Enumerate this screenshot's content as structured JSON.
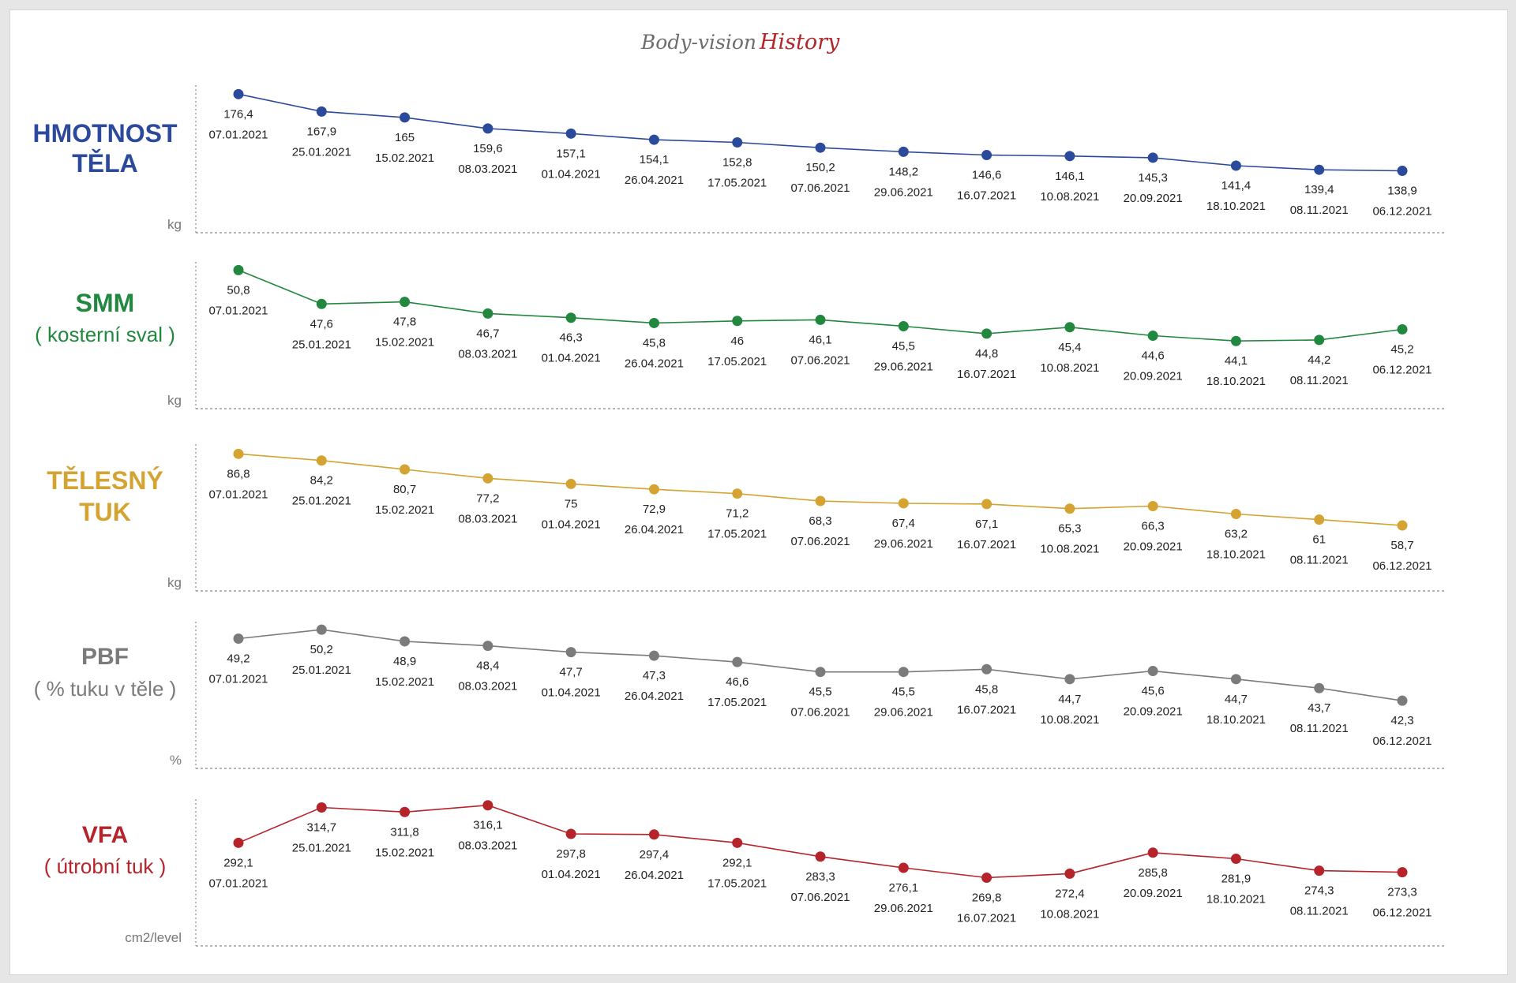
{
  "title": {
    "part1": "Body-vision",
    "part2": "History",
    "accent_color": "#b0262a"
  },
  "dates": [
    "07.01.2021",
    "25.01.2021",
    "15.02.2021",
    "08.03.2021",
    "01.04.2021",
    "26.04.2021",
    "17.05.2021",
    "07.06.2021",
    "29.06.2021",
    "16.07.2021",
    "10.08.2021",
    "20.09.2021",
    "18.10.2021",
    "08.11.2021",
    "06.12.2021"
  ],
  "chart_data": [
    {
      "type": "line",
      "name": "HMOTNOST TĚLA",
      "title_lines": [
        "HMOTNOST",
        "TĚLA"
      ],
      "subtitle": "",
      "unit": "kg",
      "color": "#2c4a9c",
      "x": [
        "07.01.2021",
        "25.01.2021",
        "15.02.2021",
        "08.03.2021",
        "01.04.2021",
        "26.04.2021",
        "17.05.2021",
        "07.06.2021",
        "29.06.2021",
        "16.07.2021",
        "10.08.2021",
        "20.09.2021",
        "18.10.2021",
        "08.11.2021",
        "06.12.2021"
      ],
      "values": [
        176.4,
        167.9,
        165,
        159.6,
        157.1,
        154.1,
        152.8,
        150.2,
        148.2,
        146.6,
        146.1,
        145.3,
        141.4,
        139.4,
        138.9
      ],
      "labels": [
        "176,4",
        "167,9",
        "165",
        "159,6",
        "157,1",
        "154,1",
        "152,8",
        "150,2",
        "148,2",
        "146,6",
        "146,1",
        "145,3",
        "141,4",
        "139,4",
        "138,9"
      ],
      "ylim": [
        136,
        180
      ],
      "grid": false
    },
    {
      "type": "line",
      "name": "SMM",
      "title_lines": [
        "SMM"
      ],
      "subtitle": "( kosterní sval )",
      "unit": "kg",
      "color": "#22873f",
      "x": [
        "07.01.2021",
        "25.01.2021",
        "15.02.2021",
        "08.03.2021",
        "01.04.2021",
        "26.04.2021",
        "17.05.2021",
        "07.06.2021",
        "29.06.2021",
        "16.07.2021",
        "10.08.2021",
        "20.09.2021",
        "18.10.2021",
        "08.11.2021",
        "06.12.2021"
      ],
      "values": [
        50.8,
        47.6,
        47.8,
        46.7,
        46.3,
        45.8,
        46,
        46.1,
        45.5,
        44.8,
        45.4,
        44.6,
        44.1,
        44.2,
        45.2
      ],
      "labels": [
        "50,8",
        "47,6",
        "47,8",
        "46,7",
        "46,3",
        "45,8",
        "46",
        "46,1",
        "45,5",
        "44,8",
        "45,4",
        "44,6",
        "44,1",
        "44,2",
        "45,2"
      ],
      "ylim": [
        43,
        51.5
      ],
      "grid": false
    },
    {
      "type": "line",
      "name": "TĚLESNÝ TUK",
      "title_lines": [
        "TĚLESNÝ",
        "TUK"
      ],
      "subtitle": "",
      "unit": "kg",
      "color": "#d4a331",
      "x": [
        "07.01.2021",
        "25.01.2021",
        "15.02.2021",
        "08.03.2021",
        "01.04.2021",
        "26.04.2021",
        "17.05.2021",
        "07.06.2021",
        "29.06.2021",
        "16.07.2021",
        "10.08.2021",
        "20.09.2021",
        "18.10.2021",
        "08.11.2021",
        "06.12.2021"
      ],
      "values": [
        86.8,
        84.2,
        80.7,
        77.2,
        75,
        72.9,
        71.2,
        68.3,
        67.4,
        67.1,
        65.3,
        66.3,
        63.2,
        61,
        58.7
      ],
      "labels": [
        "86,8",
        "84,2",
        "80,7",
        "77,2",
        "75",
        "72,9",
        "71,2",
        "68,3",
        "67,4",
        "67,1",
        "65,3",
        "66,3",
        "63,2",
        "61",
        "58,7"
      ],
      "ylim": [
        55,
        90
      ],
      "grid": false
    },
    {
      "type": "line",
      "name": "PBF",
      "title_lines": [
        "PBF"
      ],
      "subtitle": "( % tuku v těle )",
      "unit": "%",
      "color": "#7b7b7b",
      "x": [
        "07.01.2021",
        "25.01.2021",
        "15.02.2021",
        "08.03.2021",
        "01.04.2021",
        "26.04.2021",
        "17.05.2021",
        "07.06.2021",
        "29.06.2021",
        "16.07.2021",
        "10.08.2021",
        "20.09.2021",
        "18.10.2021",
        "08.11.2021",
        "06.12.2021"
      ],
      "values": [
        49.2,
        50.2,
        48.9,
        48.4,
        47.7,
        47.3,
        46.6,
        45.5,
        45.5,
        45.8,
        44.7,
        45.6,
        44.7,
        43.7,
        42.3
      ],
      "labels": [
        "49,2",
        "50,2",
        "48,9",
        "48,4",
        "47,7",
        "47,3",
        "46,6",
        "45,5",
        "45,5",
        "45,8",
        "44,7",
        "45,6",
        "44,7",
        "43,7",
        "42,3"
      ],
      "ylim": [
        41,
        51
      ],
      "grid": false
    },
    {
      "type": "line",
      "name": "VFA",
      "title_lines": [
        "VFA"
      ],
      "subtitle": "( útrobní tuk )",
      "unit": "cm2/level",
      "color": "#b5242a",
      "x": [
        "07.01.2021",
        "25.01.2021",
        "15.02.2021",
        "08.03.2021",
        "01.04.2021",
        "26.04.2021",
        "17.05.2021",
        "07.06.2021",
        "29.06.2021",
        "16.07.2021",
        "10.08.2021",
        "20.09.2021",
        "18.10.2021",
        "08.11.2021",
        "06.12.2021"
      ],
      "values": [
        292.1,
        314.7,
        311.8,
        316.1,
        297.8,
        297.4,
        292.1,
        283.3,
        276.1,
        269.8,
        272.4,
        285.8,
        281.9,
        274.3,
        273.3
      ],
      "labels": [
        "292,1",
        "314,7",
        "311,8",
        "316,1",
        "297,8",
        "297,4",
        "292,1",
        "283,3",
        "276,1",
        "269,8",
        "272,4",
        "285,8",
        "281,9",
        "274,3",
        "273,3"
      ],
      "ylim": [
        262,
        320
      ],
      "grid": false
    }
  ]
}
